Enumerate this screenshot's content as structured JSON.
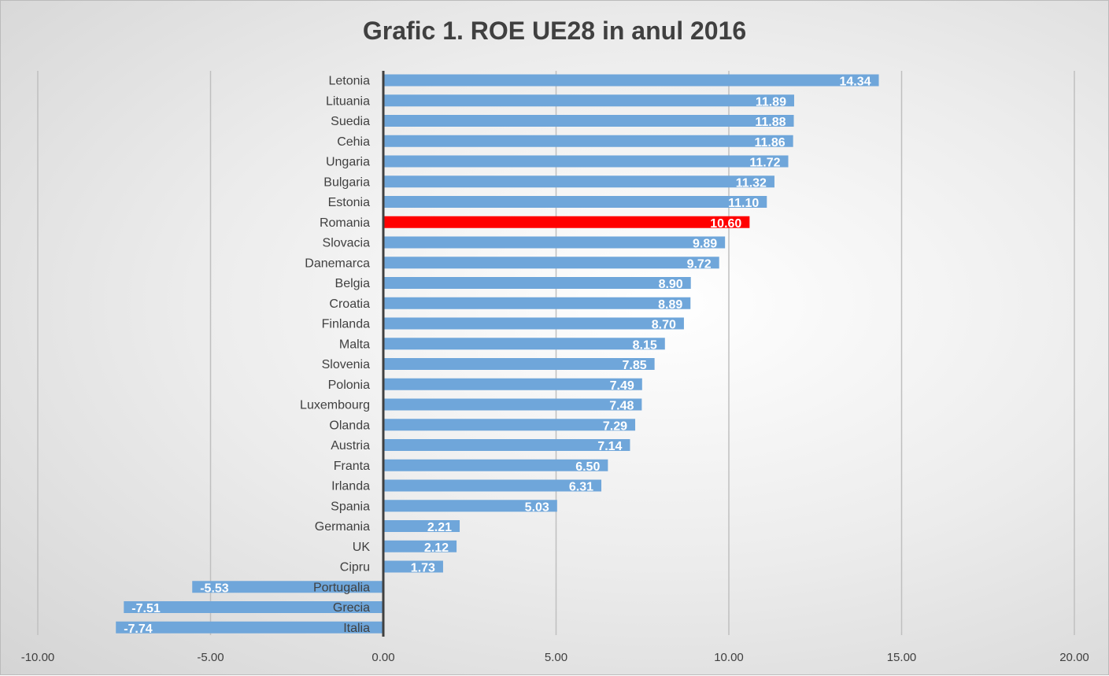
{
  "chart_data": {
    "type": "bar",
    "orientation": "horizontal",
    "title": "Grafic 1. ROE UE28 in anul 2016",
    "xlabel": "",
    "ylabel": "",
    "xlim": [
      -10,
      20
    ],
    "x_ticks": [
      "-10.00",
      "-5.00",
      "0.00",
      "5.00",
      "10.00",
      "15.00",
      "20.00"
    ],
    "grid": true,
    "categories": [
      "Letonia",
      "Lituania",
      "Suedia",
      "Cehia",
      "Ungaria",
      "Bulgaria",
      "Estonia",
      "Romania",
      "Slovacia",
      "Danemarca",
      "Belgia",
      "Croatia",
      "Finlanda",
      "Malta",
      "Slovenia",
      "Polonia",
      "Luxembourg",
      "Olanda",
      "Austria",
      "Franta",
      "Irlanda",
      "Spania",
      "Germania",
      "UK",
      "Cipru",
      "Portugalia",
      "Grecia",
      "Italia"
    ],
    "values": [
      14.34,
      11.89,
      11.88,
      11.86,
      11.72,
      11.32,
      11.1,
      10.6,
      9.89,
      9.72,
      8.9,
      8.89,
      8.7,
      8.15,
      7.85,
      7.49,
      7.48,
      7.29,
      7.14,
      6.5,
      6.31,
      5.03,
      2.21,
      2.12,
      1.73,
      -5.53,
      -7.51,
      -7.74
    ],
    "data_labels": [
      "14.34",
      "11.89",
      "11.88",
      "11.86",
      "11.72",
      "11.32",
      "11.10",
      "10.60",
      "9.89",
      "9.72",
      "8.90",
      "8.89",
      "8.70",
      "8.15",
      "7.85",
      "7.49",
      "7.48",
      "7.29",
      "7.14",
      "6.50",
      "6.31",
      "5.03",
      "2.21",
      "2.12",
      "1.73",
      "-5.53",
      "-7.51",
      "-7.74"
    ],
    "highlight": "Romania",
    "colors": {
      "bar": "#6fa6da",
      "highlight": "#ff0000",
      "text": "#404040",
      "grid": "#bfbfbf",
      "axis": "#404040"
    }
  }
}
